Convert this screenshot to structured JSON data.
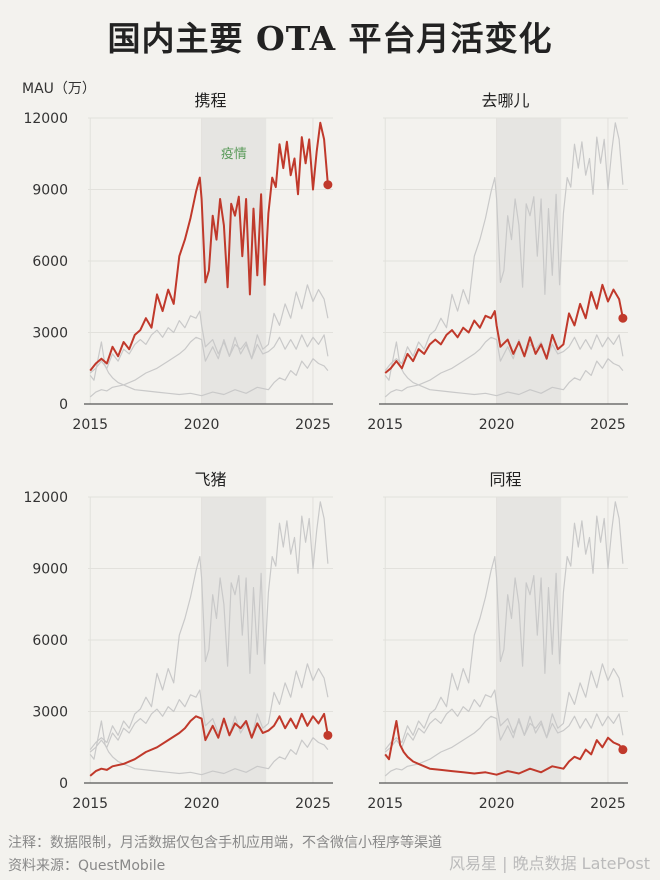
{
  "title": "国内主要 OTA 平台月活变化",
  "ylabel": "MAU（万）",
  "pandemic_label": "疫情",
  "footnote": "注释：数据限制，月活数据仅包含手机应用端，不含微信小程序等渠道",
  "source": "资料来源：QuestMobile",
  "watermark": "风易星 | 晚点数据 LatePost",
  "colors": {
    "highlight": "#c0392b",
    "background_series": "#c9c9c9",
    "pandemic_band": "#e6e5e2",
    "background": "#f3f2ee"
  },
  "chart_data": {
    "type": "line",
    "layout": "small-multiples-2x2",
    "xlim": [
      2014.9,
      2025.9
    ],
    "ylim": [
      0,
      12000
    ],
    "x_ticks": [
      2015,
      2020,
      2025
    ],
    "y_ticks": [
      0,
      3000,
      6000,
      9000,
      12000
    ],
    "pandemic_band": [
      2020.0,
      2022.9
    ],
    "grid": "horizontal-and-vertical, light",
    "panels": [
      "携程",
      "去哪儿",
      "飞猪",
      "同程"
    ],
    "series": [
      {
        "name": "携程",
        "x": [
          2015.0,
          2015.25,
          2015.5,
          2015.75,
          2016.0,
          2016.25,
          2016.5,
          2016.75,
          2017.0,
          2017.25,
          2017.5,
          2017.75,
          2018.0,
          2018.25,
          2018.5,
          2018.75,
          2019.0,
          2019.25,
          2019.5,
          2019.75,
          2019.92,
          2020.0,
          2020.17,
          2020.33,
          2020.5,
          2020.67,
          2020.83,
          2021.0,
          2021.17,
          2021.33,
          2021.5,
          2021.67,
          2021.83,
          2022.0,
          2022.17,
          2022.33,
          2022.5,
          2022.67,
          2022.83,
          2023.0,
          2023.17,
          2023.33,
          2023.5,
          2023.67,
          2023.83,
          2024.0,
          2024.17,
          2024.33,
          2024.5,
          2024.67,
          2024.83,
          2025.0,
          2025.17,
          2025.33,
          2025.5,
          2025.67
        ],
        "values": [
          1400,
          1700,
          1900,
          1700,
          2400,
          2000,
          2600,
          2300,
          2900,
          3100,
          3600,
          3200,
          4600,
          3900,
          4800,
          4200,
          6200,
          6900,
          7800,
          8900,
          9500,
          8600,
          5100,
          5600,
          7900,
          6900,
          8600,
          7500,
          4900,
          8400,
          7900,
          8700,
          6200,
          8600,
          4600,
          8200,
          5400,
          8800,
          5000,
          8000,
          9500,
          9100,
          10900,
          9900,
          11000,
          9600,
          10300,
          8800,
          11200,
          10100,
          11100,
          9000,
          10600,
          11800,
          11100,
          9200
        ]
      },
      {
        "name": "去哪儿",
        "x": [
          2015.0,
          2015.25,
          2015.5,
          2015.75,
          2016.0,
          2016.25,
          2016.5,
          2016.75,
          2017.0,
          2017.25,
          2017.5,
          2017.75,
          2018.0,
          2018.25,
          2018.5,
          2018.75,
          2019.0,
          2019.25,
          2019.5,
          2019.75,
          2019.92,
          2020.0,
          2020.17,
          2020.5,
          2020.75,
          2021.0,
          2021.25,
          2021.5,
          2021.75,
          2022.0,
          2022.25,
          2022.5,
          2022.75,
          2023.0,
          2023.25,
          2023.5,
          2023.75,
          2024.0,
          2024.25,
          2024.5,
          2024.75,
          2025.0,
          2025.25,
          2025.5,
          2025.67
        ],
        "values": [
          1300,
          1500,
          1800,
          1500,
          2100,
          1800,
          2300,
          2100,
          2500,
          2700,
          2500,
          2900,
          3100,
          2800,
          3200,
          3000,
          3500,
          3200,
          3700,
          3600,
          3900,
          3300,
          2400,
          2700,
          2100,
          2600,
          2000,
          2800,
          2100,
          2500,
          1900,
          2900,
          2300,
          2500,
          3800,
          3300,
          4200,
          3600,
          4700,
          4000,
          5000,
          4300,
          4800,
          4400,
          3600
        ]
      },
      {
        "name": "飞猪",
        "x": [
          2015.0,
          2015.25,
          2015.5,
          2015.75,
          2016.0,
          2016.5,
          2017.0,
          2017.5,
          2018.0,
          2018.5,
          2019.0,
          2019.25,
          2019.5,
          2019.75,
          2020.0,
          2020.17,
          2020.5,
          2020.75,
          2021.0,
          2021.25,
          2021.5,
          2021.75,
          2022.0,
          2022.25,
          2022.5,
          2022.75,
          2023.0,
          2023.25,
          2023.5,
          2023.75,
          2024.0,
          2024.25,
          2024.5,
          2024.75,
          2025.0,
          2025.25,
          2025.5,
          2025.67
        ],
        "values": [
          300,
          500,
          600,
          550,
          700,
          800,
          1000,
          1300,
          1500,
          1800,
          2100,
          2300,
          2600,
          2800,
          2700,
          1800,
          2400,
          1900,
          2700,
          2000,
          2500,
          2300,
          2600,
          1900,
          2500,
          2100,
          2200,
          2400,
          2800,
          2300,
          2700,
          2300,
          2900,
          2400,
          2800,
          2500,
          2900,
          2000
        ]
      },
      {
        "name": "同程",
        "x": [
          2015.0,
          2015.17,
          2015.33,
          2015.5,
          2015.67,
          2015.83,
          2016.0,
          2016.25,
          2016.5,
          2016.75,
          2017.0,
          2017.5,
          2018.0,
          2018.5,
          2019.0,
          2019.5,
          2020.0,
          2020.5,
          2021.0,
          2021.5,
          2022.0,
          2022.5,
          2023.0,
          2023.25,
          2023.5,
          2023.75,
          2024.0,
          2024.25,
          2024.5,
          2024.75,
          2025.0,
          2025.25,
          2025.5,
          2025.67
        ],
        "values": [
          1200,
          1000,
          1800,
          2600,
          1600,
          1300,
          1100,
          900,
          800,
          700,
          600,
          550,
          500,
          450,
          400,
          450,
          350,
          500,
          400,
          600,
          450,
          700,
          600,
          900,
          1100,
          1000,
          1400,
          1200,
          1800,
          1500,
          1900,
          1700,
          1600,
          1400
        ]
      }
    ]
  }
}
